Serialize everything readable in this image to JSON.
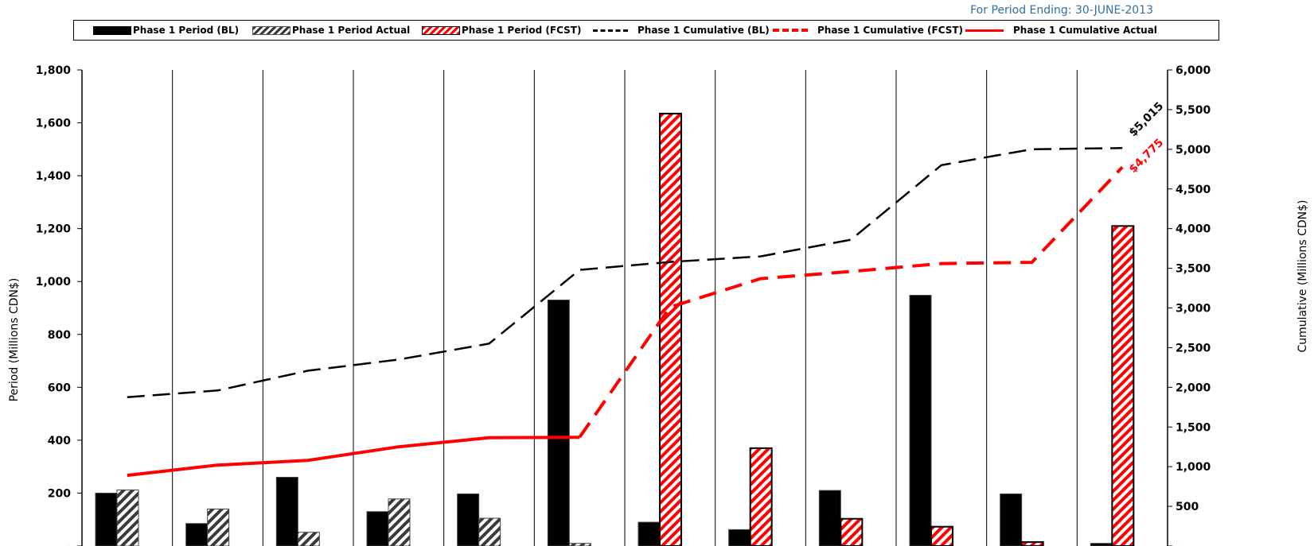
{
  "header": {
    "period_note": "For Period Ending: 30-JUNE-2013"
  },
  "legend": {
    "items": [
      {
        "label": "Phase 1 Period (BL)",
        "swatch": "solid-black"
      },
      {
        "label": "Phase 1 Period Actual",
        "swatch": "hatch-black"
      },
      {
        "label": "Phase 1 Period (FCST)",
        "swatch": "hatch-red"
      },
      {
        "label": "Phase 1 Cumulative (BL)",
        "swatch": "dash-black"
      },
      {
        "label": "Phase 1 Cumulative (FCST)",
        "swatch": "dash-red"
      },
      {
        "label": "Phase 1 Cumulative Actual",
        "swatch": "solid-red"
      }
    ]
  },
  "colors": {
    "baseline": "#000000",
    "forecast": "#ff0000",
    "actual": "#ff0000",
    "header_note": "#2f6fa6"
  },
  "chart_data": {
    "type": "bar",
    "group_count": 12,
    "ylabel": "Period (Millions CDN$)",
    "y2label": "Cumulative (Millions CDN$)",
    "ylim": [
      0,
      1800
    ],
    "y2lim": [
      0,
      6000
    ],
    "yticks": [
      "-",
      "200",
      "400",
      "600",
      "800",
      "1,000",
      "1,200",
      "1,400",
      "1,600",
      "1,800"
    ],
    "y2ticks": [
      "-",
      "500",
      "1,000",
      "1,500",
      "2,000",
      "2,500",
      "3,000",
      "3,500",
      "4,000",
      "4,500",
      "5,000",
      "5,500",
      "6,000"
    ],
    "legend_position": "top",
    "grid": "vertical group separators",
    "series": [
      {
        "name": "Phase 1 Period (BL)",
        "kind": "bar",
        "axis": "left",
        "style": "solid-black",
        "values": [
          200,
          85,
          260,
          130,
          197,
          930,
          90,
          62,
          210,
          948,
          197,
          10
        ]
      },
      {
        "name": "Phase 1 Period Actual",
        "kind": "bar",
        "axis": "left",
        "style": "hatch-black",
        "values": [
          212,
          140,
          52,
          178,
          105,
          10,
          null,
          null,
          null,
          null,
          null,
          null
        ]
      },
      {
        "name": "Phase 1 Period (FCST)",
        "kind": "bar",
        "axis": "left",
        "style": "hatch-red",
        "values": [
          null,
          null,
          null,
          null,
          null,
          null,
          1635,
          370,
          103,
          73,
          15,
          1210
        ]
      },
      {
        "name": "Phase 1 Cumulative (BL)",
        "kind": "line",
        "axis": "right",
        "style": "dash-black",
        "values": [
          1875,
          1960,
          2210,
          2350,
          2550,
          3480,
          3580,
          3650,
          3860,
          4800,
          5000,
          5015
        ]
      },
      {
        "name": "Phase 1 Cumulative (FCST)",
        "kind": "line",
        "axis": "right",
        "style": "dash-red",
        "values": [
          null,
          null,
          null,
          null,
          null,
          1370,
          3010,
          3370,
          3460,
          3560,
          3575,
          4775
        ]
      },
      {
        "name": "Phase 1 Cumulative Actual",
        "kind": "line",
        "axis": "right",
        "style": "solid-red",
        "values": [
          890,
          1020,
          1080,
          1250,
          1365,
          1370,
          null,
          null,
          null,
          null,
          null,
          null
        ]
      }
    ],
    "annotations": [
      {
        "text": "$5,015",
        "series": "Phase 1 Cumulative (BL)",
        "index": 11,
        "color": "#000000"
      },
      {
        "text": "$4,775",
        "series": "Phase 1 Cumulative (FCST)",
        "index": 11,
        "color": "#ff0000"
      }
    ]
  }
}
